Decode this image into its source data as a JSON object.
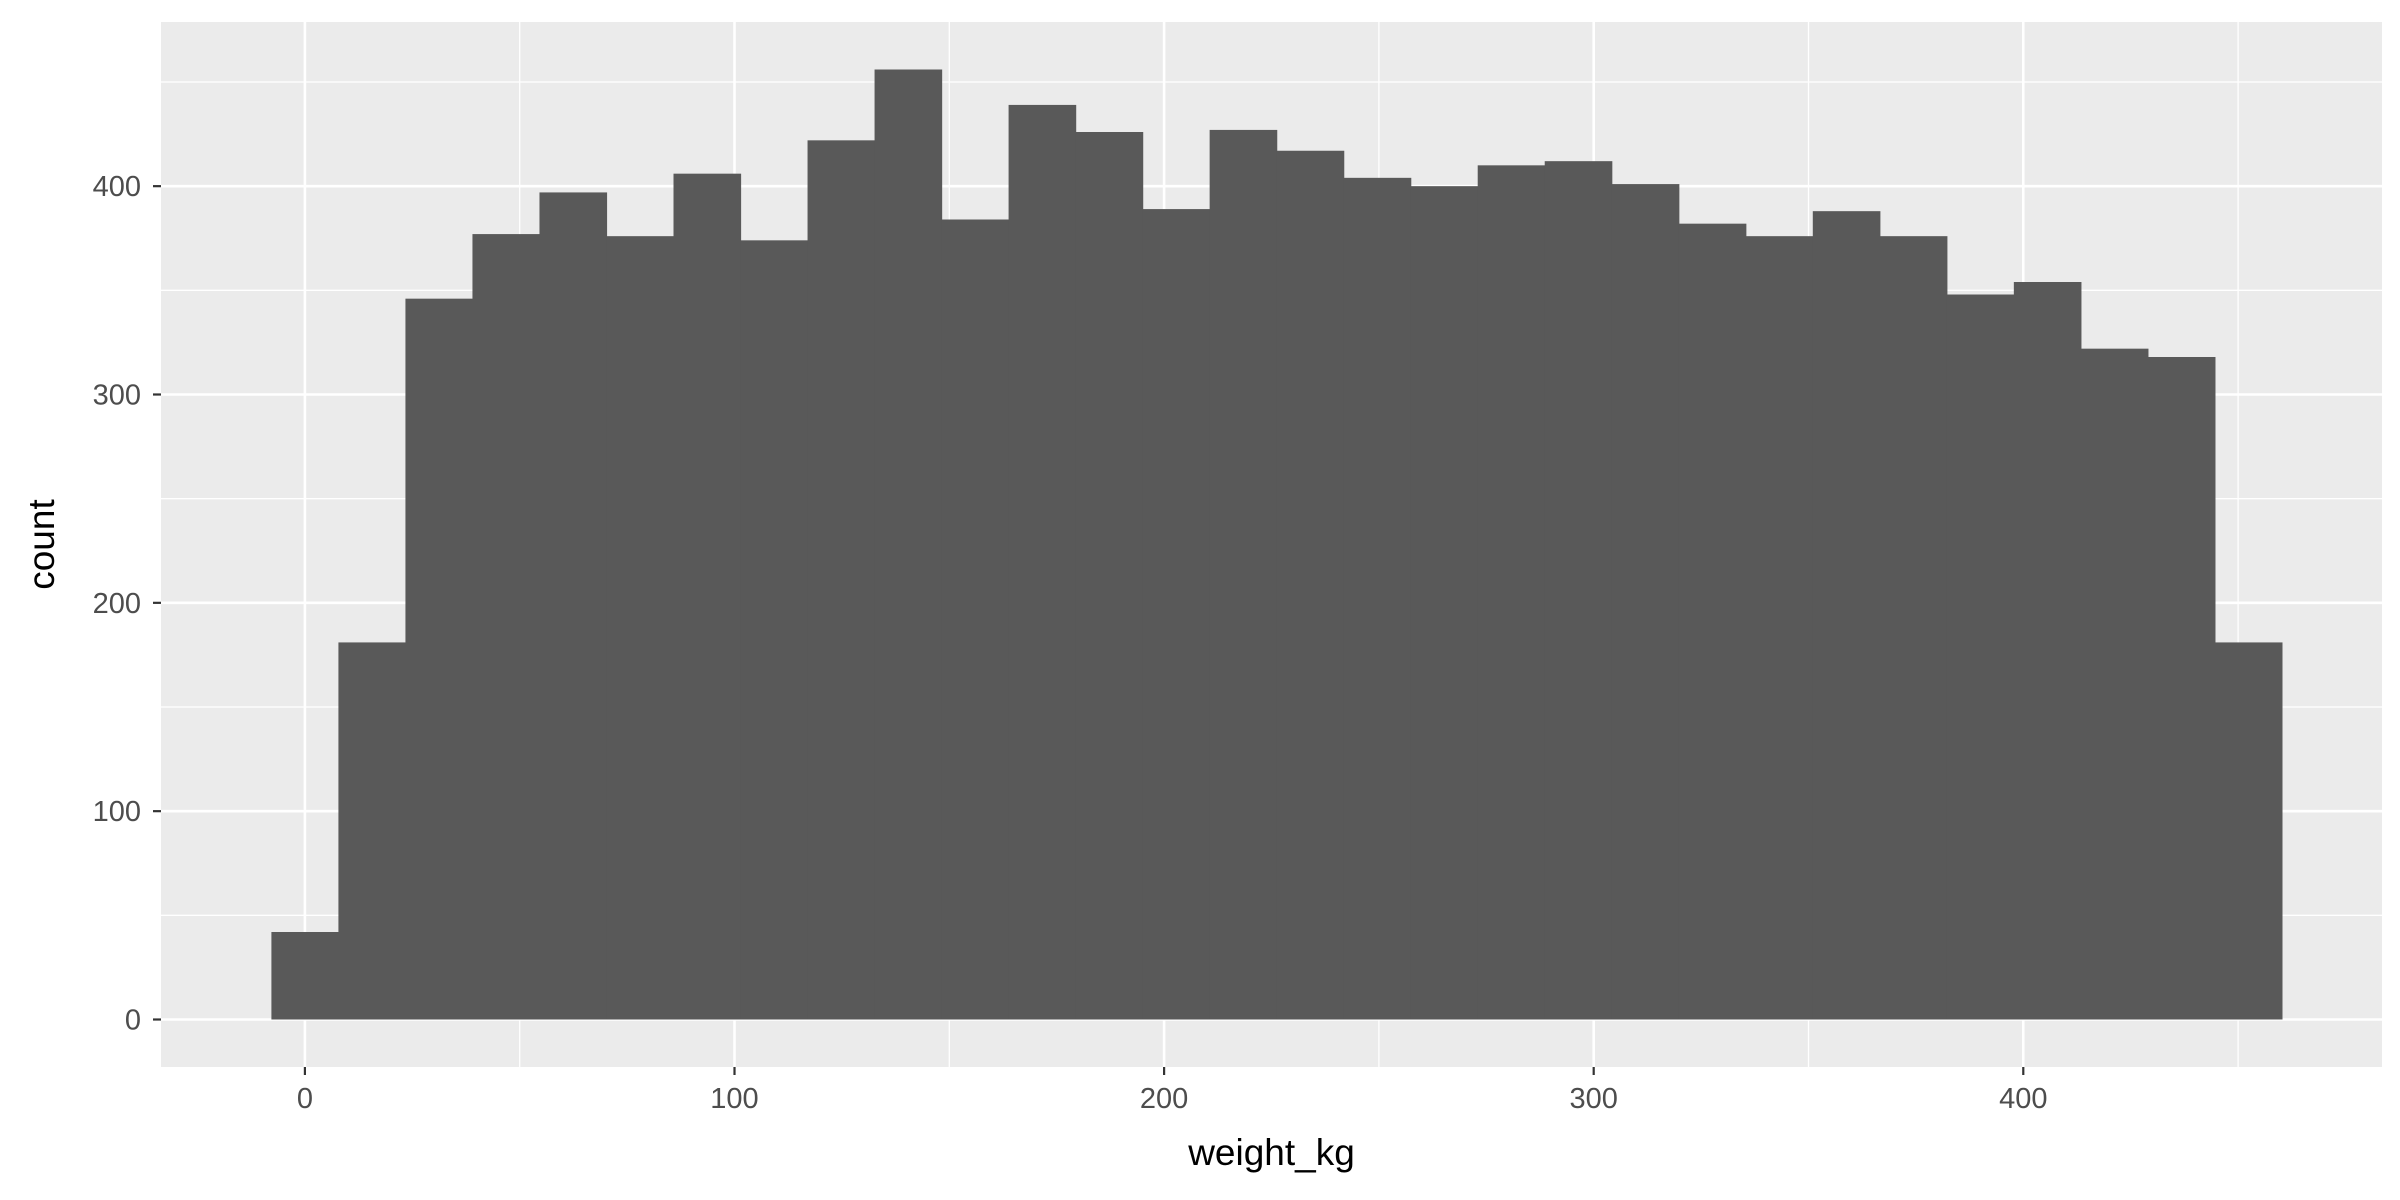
{
  "chart_data": {
    "type": "bar",
    "subtype": "histogram",
    "title": "",
    "xlabel": "weight_kg",
    "ylabel": "count",
    "xlim": [
      -33.5,
      483.5
    ],
    "ylim": [
      -22.8,
      478.8
    ],
    "x_ticks": [
      0,
      100,
      200,
      300,
      400
    ],
    "y_ticks": [
      0,
      100,
      200,
      300,
      400
    ],
    "grid": true,
    "legend": "none",
    "bin_width": 15.6,
    "bin_start": -7.8,
    "values": [
      42,
      181,
      346,
      377,
      397,
      376,
      406,
      374,
      422,
      456,
      384,
      439,
      426,
      389,
      427,
      417,
      404,
      400,
      410,
      412,
      401,
      382,
      376,
      388,
      376,
      348,
      354,
      322,
      318,
      181
    ],
    "colors": {
      "panel": "#ebebeb",
      "grid_major": "#ffffff",
      "bar_fill": "#595959",
      "tick": "#333333"
    }
  }
}
